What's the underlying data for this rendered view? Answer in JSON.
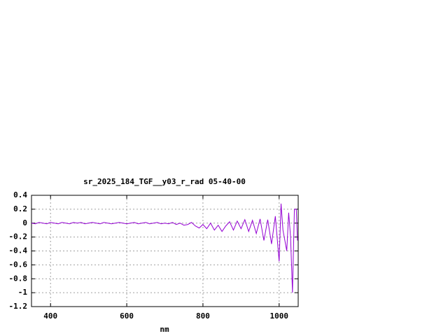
{
  "chart_data": {
    "type": "line",
    "title": "sr_2025_184_TGF__y03_r_rad 05-40-00",
    "x_label": "nm",
    "x": [
      350,
      360,
      370,
      380,
      390,
      400,
      410,
      420,
      430,
      440,
      450,
      460,
      470,
      480,
      490,
      500,
      510,
      520,
      530,
      540,
      550,
      560,
      570,
      580,
      590,
      600,
      610,
      620,
      630,
      640,
      650,
      660,
      670,
      680,
      690,
      700,
      710,
      720,
      730,
      740,
      750,
      760,
      770,
      780,
      790,
      800,
      810,
      820,
      830,
      840,
      850,
      860,
      870,
      880,
      890,
      900,
      910,
      920,
      930,
      940,
      950,
      960,
      970,
      980,
      990,
      1000,
      1005,
      1010,
      1020,
      1025,
      1030,
      1035,
      1040,
      1045,
      1048
    ],
    "series": [
      {
        "color": "#9400d3",
        "values": [
          0,
          -0.01,
          0.01,
          0,
          -0.01,
          0.01,
          0,
          -0.01,
          0.01,
          0,
          -0.01,
          0.01,
          0,
          0.01,
          -0.01,
          0,
          0.01,
          0,
          -0.01,
          0.01,
          0,
          -0.01,
          0,
          0.01,
          0,
          -0.01,
          0,
          0.01,
          -0.01,
          0,
          0.01,
          -0.01,
          0,
          0.01,
          -0.01,
          0,
          -0.01,
          0.01,
          -0.02,
          0,
          -0.03,
          -0.02,
          0.01,
          -0.04,
          -0.07,
          -0.02,
          -0.08,
          0,
          -0.1,
          -0.03,
          -0.12,
          -0.04,
          0.02,
          -0.1,
          0.03,
          -0.08,
          0.05,
          -0.12,
          0.04,
          -0.15,
          0.06,
          -0.25,
          0.05,
          -0.3,
          0.1,
          -0.55,
          0.28,
          -0.1,
          -0.4,
          0.15,
          -0.2,
          -1.0,
          0.2,
          0.2,
          -0.25
        ]
      }
    ],
    "xlim": [
      350,
      1050
    ],
    "xticks": [
      400,
      600,
      800,
      1000
    ],
    "ylim": [
      -1.2,
      0.4
    ],
    "yticks": [
      0.4,
      0.2,
      0,
      -0.2,
      -0.4,
      -0.6,
      -0.8,
      -1,
      -1.2
    ],
    "grid": true
  }
}
